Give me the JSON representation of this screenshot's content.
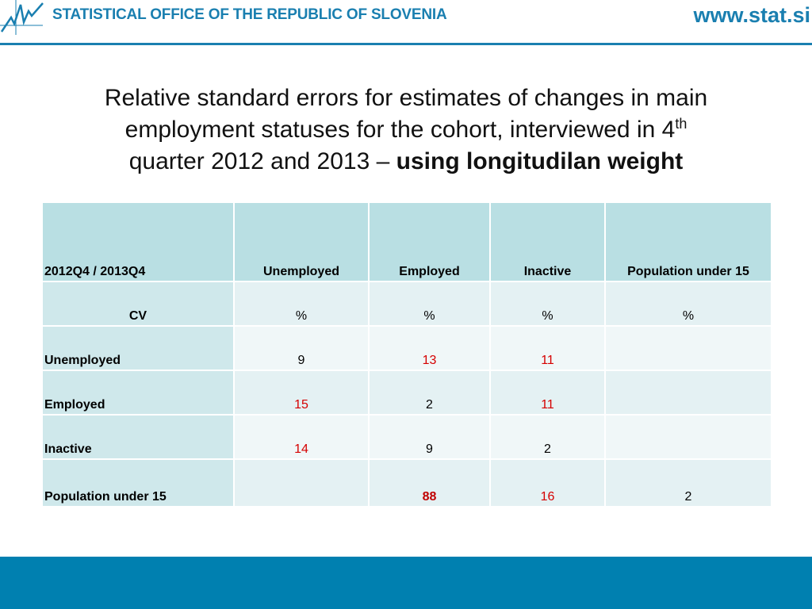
{
  "header": {
    "org_name": "STATISTICAL OFFICE OF THE REPUBLIC OF SLOVENIA",
    "site_url": "www.stat.si"
  },
  "title": {
    "line1": "Relative standard errors for estimates of changes in main",
    "line2": "employment statuses for the cohort, interviewed in 4",
    "line2_sup": "th",
    "line3_plain": "quarter 2012 and 2013 – ",
    "line3_bold": "using longitudilan weight"
  },
  "table": {
    "corner": "2012Q4 / 2013Q4",
    "columns": [
      "Unemployed",
      "Employed",
      "Inactive",
      "Population under 15"
    ],
    "unit_row": {
      "label": "CV",
      "values": [
        "%",
        "%",
        "%",
        "%"
      ]
    },
    "rows": [
      {
        "label": "Unemployed",
        "values": [
          "9",
          "13",
          "11",
          ""
        ]
      },
      {
        "label": "Employed",
        "values": [
          "15",
          "2",
          "11",
          ""
        ]
      },
      {
        "label": "Inactive",
        "values": [
          "14",
          "9",
          "2",
          ""
        ]
      },
      {
        "label": "Population under 15",
        "values": [
          "",
          "88",
          "16",
          "2"
        ]
      }
    ]
  },
  "colors": {
    "brand_blue": "#1a7fb0",
    "header_cell": "#b9dfe3",
    "highlight_red": "#d50000"
  }
}
